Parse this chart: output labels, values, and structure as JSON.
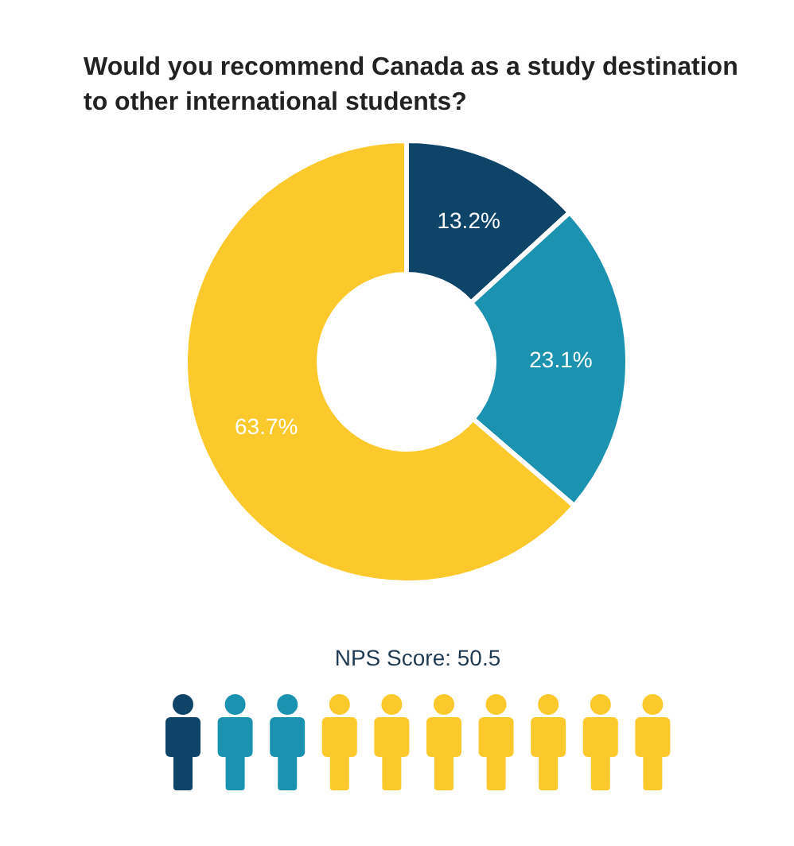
{
  "chart_data": {
    "type": "donut",
    "title": "Would you recommend Canada as a study destination to other international students?",
    "categories": [
      null,
      null,
      null
    ],
    "values": [
      13.2,
      23.1,
      63.7
    ],
    "colors": [
      "#0e4468",
      "#1b93b0",
      "#fbc92c"
    ],
    "value_labels": [
      "13.2%",
      "23.1%",
      "63.7%"
    ],
    "annotations": [
      "NPS Score: 50.5"
    ]
  }
}
